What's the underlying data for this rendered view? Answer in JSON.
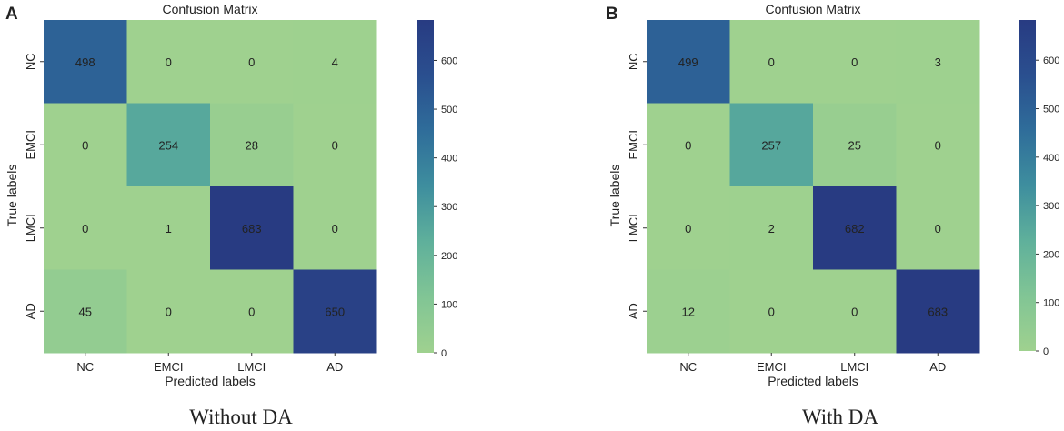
{
  "chart_data": [
    {
      "type": "heatmap",
      "panel_label": "A",
      "title": "Confusion Matrix",
      "xlabel": "Predicted labels",
      "ylabel": "True labels",
      "categories": [
        "NC",
        "EMCI",
        "LMCI",
        "AD"
      ],
      "matrix": [
        [
          498,
          0,
          0,
          4
        ],
        [
          0,
          254,
          28,
          0
        ],
        [
          0,
          1,
          683,
          0
        ],
        [
          45,
          0,
          0,
          650
        ]
      ],
      "colorbar": {
        "min": 0,
        "max": 683,
        "ticks": [
          0,
          100,
          200,
          300,
          400,
          500,
          600
        ]
      },
      "caption": "Without DA"
    },
    {
      "type": "heatmap",
      "panel_label": "B",
      "title": "Confusion Matrix",
      "xlabel": "Predicted labels",
      "ylabel": "True labels",
      "categories": [
        "NC",
        "EMCI",
        "LMCI",
        "AD"
      ],
      "matrix": [
        [
          499,
          0,
          0,
          3
        ],
        [
          0,
          257,
          25,
          0
        ],
        [
          0,
          2,
          682,
          0
        ],
        [
          12,
          0,
          0,
          683
        ]
      ],
      "colorbar": {
        "min": 0,
        "max": 683,
        "ticks": [
          0,
          100,
          200,
          300,
          400,
          500,
          600
        ]
      },
      "caption": "With DA"
    }
  ],
  "colormap": [
    "#9fd18f",
    "#81c595",
    "#5fb09b",
    "#3e8e9e",
    "#2f6d9a",
    "#2a4f8f",
    "#283b82"
  ]
}
